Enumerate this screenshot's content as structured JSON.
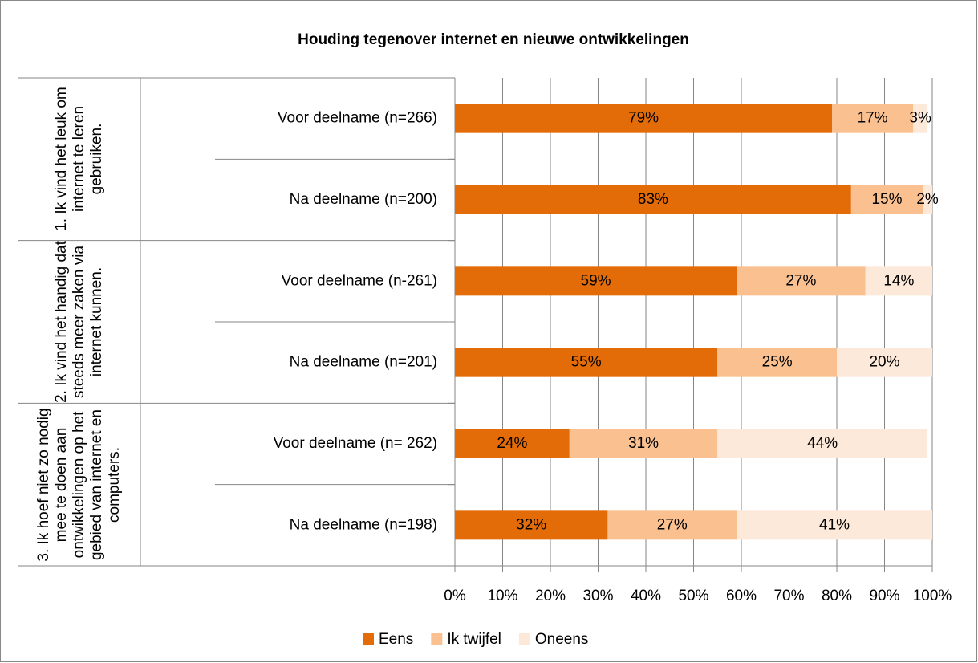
{
  "chart_data": {
    "type": "bar",
    "orientation": "horizontal",
    "stacked": true,
    "title": "Houding tegenover internet en nieuwe ontwikkelingen",
    "groups": [
      "1. Ik vind het leuk om internet te leren gebruiken.",
      "2. Ik vind het handig dat steeds meer zaken via internet kunnen.",
      "3. Ik hoef niet zo nodig mee te doen aan ontwikkelingen op het gebied van internet en computers."
    ],
    "categories": [
      "Voor deelname (n=266)",
      "Na deelname (n=200)",
      "Voor deelname (n-261)",
      "Na deelname (n=201)",
      "Voor deelname (n= 262)",
      "Na deelname (n=198)"
    ],
    "series": [
      {
        "name": "Eens",
        "color": "#E36C09",
        "values": [
          79,
          83,
          59,
          55,
          24,
          32
        ],
        "value_labels": [
          "79%",
          "83%",
          "59%",
          "55%",
          "24%",
          "32%"
        ]
      },
      {
        "name": "Ik twijfel",
        "color": "#FAC090",
        "values": [
          17,
          15,
          27,
          25,
          31,
          27
        ],
        "value_labels": [
          "17%",
          "15%",
          "27%",
          "25%",
          "31%",
          "27%"
        ]
      },
      {
        "name": "Oneens",
        "color": "#FDE9D9",
        "values": [
          3,
          2,
          14,
          20,
          44,
          41
        ],
        "value_labels": [
          "3%",
          "2%",
          "14%",
          "20%",
          "44%",
          "41%"
        ]
      }
    ],
    "xlim": [
      0,
      100
    ],
    "xticks": [
      {
        "value": 0,
        "label": "0%"
      },
      {
        "value": 10,
        "label": "10%"
      },
      {
        "value": 20,
        "label": "20%"
      },
      {
        "value": 30,
        "label": "30%"
      },
      {
        "value": 40,
        "label": "40%"
      },
      {
        "value": 50,
        "label": "50%"
      },
      {
        "value": 60,
        "label": "60%"
      },
      {
        "value": 70,
        "label": "70%"
      },
      {
        "value": 80,
        "label": "80%"
      },
      {
        "value": 90,
        "label": "90%"
      },
      {
        "value": 100,
        "label": "100%"
      }
    ],
    "grid": true,
    "legend": "bottom"
  }
}
